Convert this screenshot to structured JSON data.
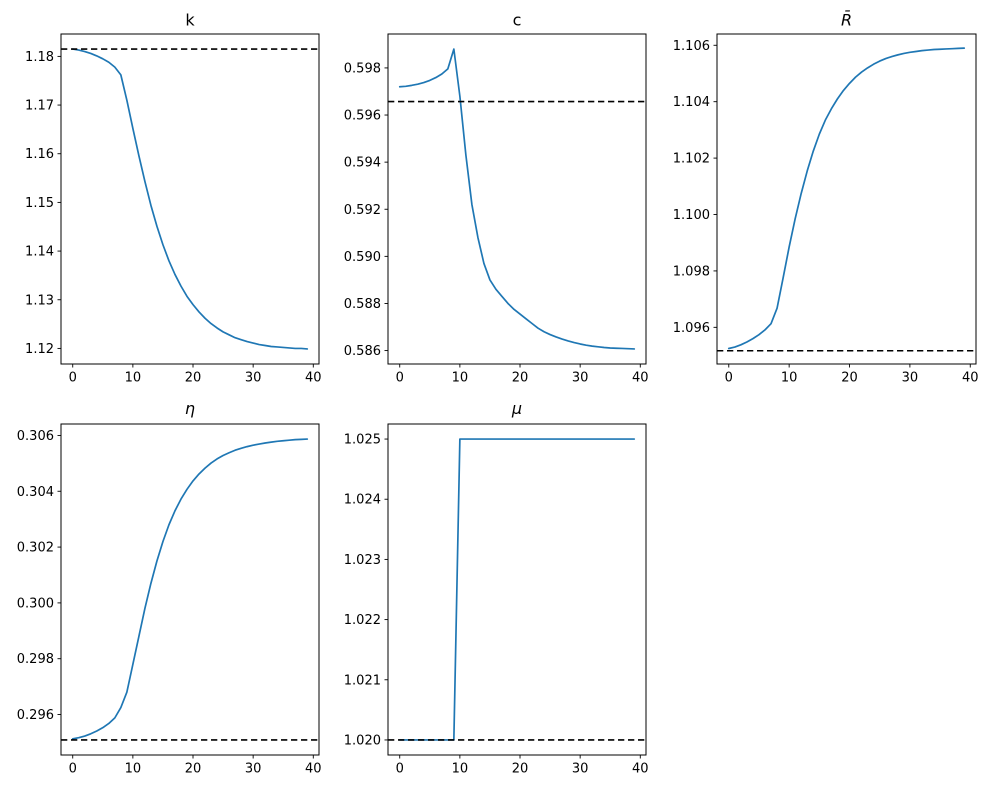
{
  "figure": {
    "background": "#ffffff",
    "layout": "2 rows x 3 columns of subplots, bottom-right cell empty",
    "accent_color": "#1f77b4",
    "reference_line_color": "#000000"
  },
  "chart_data": [
    {
      "id": "k",
      "type": "line",
      "title": "k",
      "title_style": "normal",
      "x_ticks": [
        0,
        10,
        20,
        30,
        40
      ],
      "xlim": [
        -1.95,
        40.95
      ],
      "ylim": [
        1.1168,
        1.1846
      ],
      "y_ticks": [
        1.12,
        1.13,
        1.14,
        1.15,
        1.16,
        1.17,
        1.18
      ],
      "y_tick_labels": [
        "1.12",
        "1.13",
        "1.14",
        "1.15",
        "1.16",
        "1.17",
        "1.18"
      ],
      "line_color": "#1f77b4",
      "line_style": "solid",
      "steady_state_value": 1.1815,
      "steady_state_color": "#000000",
      "steady_state_style": "dashed",
      "x": [
        0,
        1,
        2,
        3,
        4,
        5,
        6,
        7,
        8,
        9,
        10,
        11,
        12,
        13,
        14,
        15,
        16,
        17,
        18,
        19,
        20,
        21,
        22,
        23,
        24,
        25,
        26,
        27,
        28,
        29,
        30,
        31,
        32,
        33,
        34,
        35,
        36,
        37,
        38,
        39
      ],
      "y": [
        1.1815,
        1.1813,
        1.181,
        1.1806,
        1.1801,
        1.1795,
        1.1788,
        1.1778,
        1.1762,
        1.171,
        1.1652,
        1.1596,
        1.1543,
        1.1494,
        1.1451,
        1.1413,
        1.138,
        1.1352,
        1.1328,
        1.1307,
        1.129,
        1.1275,
        1.1262,
        1.1251,
        1.1242,
        1.1234,
        1.1228,
        1.1222,
        1.1218,
        1.1214,
        1.1211,
        1.1208,
        1.1206,
        1.1204,
        1.1203,
        1.1202,
        1.1201,
        1.12,
        1.12,
        1.1199
      ]
    },
    {
      "id": "c",
      "type": "line",
      "title": "c",
      "title_style": "normal",
      "x_ticks": [
        0,
        10,
        20,
        30,
        40
      ],
      "xlim": [
        -1.95,
        40.95
      ],
      "ylim": [
        0.58543,
        0.59944
      ],
      "y_ticks": [
        0.586,
        0.588,
        0.59,
        0.592,
        0.594,
        0.596,
        0.598
      ],
      "y_tick_labels": [
        "0.586",
        "0.588",
        "0.590",
        "0.592",
        "0.594",
        "0.596",
        "0.598"
      ],
      "line_color": "#1f77b4",
      "line_style": "solid",
      "steady_state_value": 0.59657,
      "steady_state_color": "#000000",
      "steady_state_style": "dashed",
      "x": [
        0,
        1,
        2,
        3,
        4,
        5,
        6,
        7,
        8,
        9,
        10,
        11,
        12,
        13,
        14,
        15,
        16,
        17,
        18,
        19,
        20,
        21,
        22,
        23,
        24,
        25,
        26,
        27,
        28,
        29,
        30,
        31,
        32,
        33,
        34,
        35,
        36,
        37,
        38,
        39
      ],
      "y": [
        0.5972,
        0.59722,
        0.59726,
        0.59731,
        0.59738,
        0.59747,
        0.59759,
        0.59774,
        0.59796,
        0.5988,
        0.5968,
        0.5943,
        0.5922,
        0.5908,
        0.5897,
        0.589,
        0.5886,
        0.5883,
        0.588,
        0.58775,
        0.58755,
        0.58735,
        0.58715,
        0.58695,
        0.5868,
        0.58668,
        0.58658,
        0.58649,
        0.58641,
        0.58634,
        0.58628,
        0.58623,
        0.58619,
        0.58616,
        0.58613,
        0.58611,
        0.5861,
        0.58609,
        0.58608,
        0.58607
      ]
    },
    {
      "id": "Rbar",
      "type": "line",
      "title": "R̄",
      "title_style": "italic",
      "x_ticks": [
        0,
        10,
        20,
        30,
        40
      ],
      "xlim": [
        -1.95,
        40.95
      ],
      "ylim": [
        1.0947,
        1.1064
      ],
      "y_ticks": [
        1.096,
        1.098,
        1.1,
        1.102,
        1.104,
        1.106
      ],
      "y_tick_labels": [
        "1.096",
        "1.098",
        "1.100",
        "1.102",
        "1.104",
        "1.106"
      ],
      "line_color": "#1f77b4",
      "line_style": "solid",
      "steady_state_value": 1.09517,
      "steady_state_color": "#000000",
      "steady_state_style": "dashed",
      "x": [
        0,
        1,
        2,
        3,
        4,
        5,
        6,
        7,
        8,
        9,
        10,
        11,
        12,
        13,
        14,
        15,
        16,
        17,
        18,
        19,
        20,
        21,
        22,
        23,
        24,
        25,
        26,
        27,
        28,
        29,
        30,
        31,
        32,
        33,
        34,
        35,
        36,
        37,
        38,
        39
      ],
      "y": [
        1.09525,
        1.0953,
        1.09538,
        1.09548,
        1.0956,
        1.09574,
        1.09591,
        1.09613,
        1.09668,
        1.09775,
        1.09885,
        1.09985,
        1.10075,
        1.10155,
        1.10225,
        1.10285,
        1.10335,
        1.10375,
        1.1041,
        1.1044,
        1.10465,
        1.10487,
        1.10505,
        1.1052,
        1.10533,
        1.10544,
        1.10553,
        1.1056,
        1.10566,
        1.10571,
        1.10575,
        1.10578,
        1.10581,
        1.10583,
        1.10585,
        1.10586,
        1.10587,
        1.10588,
        1.10589,
        1.1059
      ]
    },
    {
      "id": "eta",
      "type": "line",
      "title": "η",
      "title_style": "italic",
      "x_ticks": [
        0,
        10,
        20,
        30,
        40
      ],
      "xlim": [
        -1.95,
        40.95
      ],
      "ylim": [
        0.29455,
        0.30641
      ],
      "y_ticks": [
        0.296,
        0.298,
        0.3,
        0.302,
        0.304,
        0.306
      ],
      "y_tick_labels": [
        "0.296",
        "0.298",
        "0.300",
        "0.302",
        "0.304",
        "0.306"
      ],
      "line_color": "#1f77b4",
      "line_style": "solid",
      "steady_state_value": 0.29509,
      "steady_state_color": "#000000",
      "steady_state_style": "dashed",
      "x": [
        0,
        1,
        2,
        3,
        4,
        5,
        6,
        7,
        8,
        9,
        10,
        11,
        12,
        13,
        14,
        15,
        16,
        17,
        18,
        19,
        20,
        21,
        22,
        23,
        24,
        25,
        26,
        27,
        28,
        29,
        30,
        31,
        32,
        33,
        34,
        35,
        36,
        37,
        38,
        39
      ],
      "y": [
        0.29513,
        0.29517,
        0.29523,
        0.29531,
        0.29541,
        0.29553,
        0.29568,
        0.29588,
        0.29625,
        0.2968,
        0.2978,
        0.2988,
        0.2998,
        0.3007,
        0.3015,
        0.3022,
        0.3028,
        0.3033,
        0.30372,
        0.30407,
        0.30437,
        0.30462,
        0.30483,
        0.30501,
        0.30516,
        0.30528,
        0.30538,
        0.30547,
        0.30554,
        0.3056,
        0.30565,
        0.30569,
        0.30573,
        0.30576,
        0.30579,
        0.30581,
        0.30583,
        0.30585,
        0.30586,
        0.30587
      ]
    },
    {
      "id": "mu",
      "type": "line",
      "title": "μ",
      "title_style": "italic",
      "x_ticks": [
        0,
        10,
        20,
        30,
        40
      ],
      "xlim": [
        -1.95,
        40.95
      ],
      "ylim": [
        1.01975,
        1.02525
      ],
      "y_ticks": [
        1.02,
        1.021,
        1.022,
        1.023,
        1.024,
        1.025
      ],
      "y_tick_labels": [
        "1.020",
        "1.021",
        "1.022",
        "1.023",
        "1.024",
        "1.025"
      ],
      "line_color": "#1f77b4",
      "line_style": "solid",
      "steady_state_value": 1.02,
      "steady_state_color": "#000000",
      "steady_state_style": "dashed",
      "x": [
        0,
        1,
        2,
        3,
        4,
        5,
        6,
        7,
        8,
        9,
        10,
        11,
        12,
        13,
        14,
        15,
        16,
        17,
        18,
        19,
        20,
        21,
        22,
        23,
        24,
        25,
        26,
        27,
        28,
        29,
        30,
        31,
        32,
        33,
        34,
        35,
        36,
        37,
        38,
        39
      ],
      "y": [
        1.02,
        1.02,
        1.02,
        1.02,
        1.02,
        1.02,
        1.02,
        1.02,
        1.02,
        1.02,
        1.025,
        1.025,
        1.025,
        1.025,
        1.025,
        1.025,
        1.025,
        1.025,
        1.025,
        1.025,
        1.025,
        1.025,
        1.025,
        1.025,
        1.025,
        1.025,
        1.025,
        1.025,
        1.025,
        1.025,
        1.025,
        1.025,
        1.025,
        1.025,
        1.025,
        1.025,
        1.025,
        1.025,
        1.025,
        1.025
      ]
    }
  ]
}
